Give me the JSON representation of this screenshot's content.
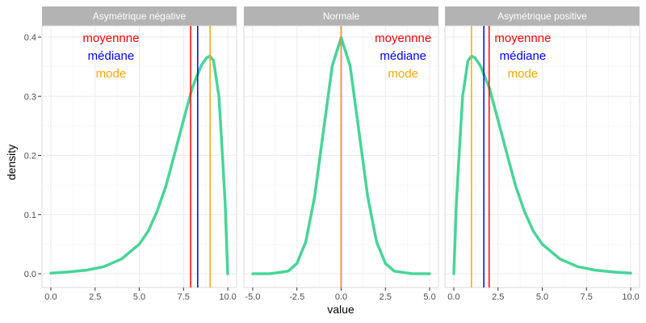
{
  "chart_data": {
    "type": "line",
    "xlabel": "value",
    "ylabel": "density",
    "ylim": [
      0,
      0.4
    ],
    "yticks": [
      "0.0",
      "0.1",
      "0.2",
      "0.3",
      "0.4"
    ],
    "curve_color": "#48D597",
    "line_colors": {
      "mean": "#FF0000",
      "median": "#0000FF",
      "mode": "#FFA500"
    },
    "annotation_colors": {
      "mean": "#FF0000",
      "median": "#0000FF",
      "mode": "#FFA500"
    },
    "panels": [
      {
        "title": "Asymétrique négative",
        "xlim": [
          -0.5,
          10.5
        ],
        "xticks": [
          "0.0",
          "2.5",
          "5.0",
          "7.5",
          "10.0"
        ],
        "xtick_values": [
          0,
          2.5,
          5,
          7.5,
          10
        ],
        "curve": {
          "x": [
            0,
            1,
            2,
            3,
            4,
            5,
            5.5,
            6,
            6.5,
            7,
            7.5,
            8,
            8.5,
            8.8,
            9,
            9.2,
            9.5,
            9.7,
            9.85,
            10
          ],
          "y": [
            0.001,
            0.003,
            0.006,
            0.012,
            0.025,
            0.05,
            0.072,
            0.105,
            0.148,
            0.203,
            0.26,
            0.315,
            0.352,
            0.365,
            0.368,
            0.36,
            0.3,
            0.2,
            0.12,
            0.0
          ]
        },
        "mean": 7.9,
        "median": 8.3,
        "mode": 9.0,
        "annotations": {
          "mean": "moyennne",
          "median": "médiane",
          "mode": "mode"
        },
        "annotation_x": 3.4
      },
      {
        "title": "Normale",
        "xlim": [
          -5.5,
          5.5
        ],
        "xticks": [
          "-5.0",
          "-2.5",
          "0.0",
          "2.5",
          "5.0"
        ],
        "xtick_values": [
          -5,
          -2.5,
          0,
          2.5,
          5
        ],
        "curve": {
          "x": [
            -5,
            -4,
            -3,
            -2.5,
            -2,
            -1.5,
            -1,
            -0.5,
            0,
            0.5,
            1,
            1.5,
            2,
            2.5,
            3,
            4,
            5
          ],
          "y": [
            0.0,
            0.0001,
            0.0044,
            0.0175,
            0.054,
            0.13,
            0.242,
            0.352,
            0.399,
            0.352,
            0.242,
            0.13,
            0.054,
            0.0175,
            0.0044,
            0.0001,
            0.0
          ]
        },
        "mean": 0,
        "median": 0,
        "mode": 0,
        "annotations": {
          "mean": "moyennne",
          "median": "médiane",
          "mode": "mode"
        },
        "annotation_x": 3.5
      },
      {
        "title": "Asymétrique positive",
        "xlim": [
          -0.5,
          10.5
        ],
        "xticks": [
          "0.0",
          "2.5",
          "5.0",
          "7.5",
          "10.0"
        ],
        "xtick_values": [
          0,
          2.5,
          5,
          7.5,
          10
        ],
        "curve": {
          "x": [
            0,
            0.15,
            0.3,
            0.5,
            0.8,
            1,
            1.2,
            1.5,
            2,
            2.5,
            3,
            3.5,
            4,
            4.5,
            5,
            6,
            7,
            8,
            9,
            10
          ],
          "y": [
            0.0,
            0.12,
            0.2,
            0.3,
            0.36,
            0.368,
            0.365,
            0.352,
            0.315,
            0.26,
            0.203,
            0.148,
            0.105,
            0.072,
            0.05,
            0.025,
            0.012,
            0.006,
            0.003,
            0.001
          ]
        },
        "mean": 2.0,
        "median": 1.7,
        "mode": 1.0,
        "annotations": {
          "mean": "moyennne",
          "median": "médiane",
          "mode": "mode"
        },
        "annotation_x": 3.9
      }
    ]
  }
}
